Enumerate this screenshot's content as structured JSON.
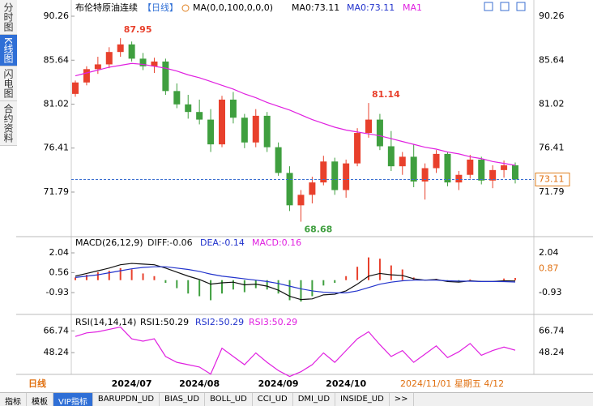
{
  "tabs": [
    "分时图",
    "K线图",
    "闪电图",
    "合约资料"
  ],
  "period_label": "日线",
  "cursor_label": "2024/11/01 星期五 4/12",
  "toolbar": [
    "指标",
    "模板",
    "VIP指标",
    "BARUPDN_UD",
    "BIAS_UD",
    "BOLL_UD",
    "CCI_UD",
    "DMI_UD",
    "INSIDE_UD",
    ">>"
  ],
  "chart_data": [
    {
      "type": "candlestick",
      "title": "布伦特原油连续",
      "period": "【日线】",
      "indicator": "MA(0,0,100,0,0,0)",
      "header_labels": [
        "MA0:73.11",
        "MA0:73.11"
      ],
      "categories": [
        null,
        null,
        null,
        null,
        null,
        "2024/07",
        null,
        null,
        null,
        null,
        null,
        "2024/08",
        null,
        null,
        null,
        null,
        null,
        null,
        "2024/09",
        null,
        null,
        null,
        null,
        null,
        "2024/10",
        null,
        null,
        null,
        null,
        null,
        null,
        null,
        null,
        null,
        null,
        null,
        null,
        null,
        null,
        null
      ],
      "candles": [
        [
          82.1,
          83.5,
          81.8,
          83.3
        ],
        [
          83.3,
          85.0,
          83.0,
          84.7
        ],
        [
          84.7,
          86.0,
          84.2,
          85.2
        ],
        [
          85.2,
          87.0,
          84.8,
          86.5
        ],
        [
          86.5,
          87.95,
          86.0,
          87.3
        ],
        [
          87.3,
          87.6,
          85.5,
          85.8
        ],
        [
          85.8,
          86.4,
          84.6,
          85.0
        ],
        [
          85.0,
          85.9,
          84.3,
          85.5
        ],
        [
          85.5,
          85.8,
          82.0,
          82.4
        ],
        [
          82.4,
          83.2,
          80.6,
          81.0
        ],
        [
          81.0,
          82.0,
          79.5,
          80.2
        ],
        [
          80.2,
          81.5,
          78.9,
          79.4
        ],
        [
          79.4,
          80.5,
          76.0,
          76.8
        ],
        [
          76.8,
          81.9,
          76.5,
          81.5
        ],
        [
          81.5,
          82.3,
          79.0,
          79.6
        ],
        [
          79.6,
          80.0,
          76.4,
          77.0
        ],
        [
          77.0,
          80.5,
          76.5,
          79.8
        ],
        [
          79.8,
          80.2,
          76.0,
          76.5
        ],
        [
          76.5,
          77.0,
          73.5,
          73.8
        ],
        [
          73.8,
          74.5,
          69.8,
          70.4
        ],
        [
          70.4,
          72.0,
          68.68,
          71.5
        ],
        [
          71.5,
          73.4,
          70.6,
          72.8
        ],
        [
          72.8,
          75.6,
          72.5,
          75.0
        ],
        [
          75.0,
          75.4,
          71.5,
          72.0
        ],
        [
          72.0,
          75.2,
          71.2,
          74.8
        ],
        [
          74.8,
          78.5,
          74.5,
          78.0
        ],
        [
          78.0,
          81.14,
          77.5,
          79.4
        ],
        [
          79.4,
          80.0,
          76.2,
          76.6
        ],
        [
          76.6,
          78.2,
          74.0,
          74.5
        ],
        [
          74.5,
          76.0,
          73.6,
          75.5
        ],
        [
          75.5,
          76.8,
          72.3,
          72.9
        ],
        [
          72.9,
          74.8,
          71.0,
          74.3
        ],
        [
          74.3,
          76.2,
          73.8,
          75.8
        ],
        [
          75.8,
          76.0,
          72.4,
          72.8
        ],
        [
          72.8,
          74.0,
          72.0,
          73.6
        ],
        [
          73.6,
          75.7,
          73.2,
          75.2
        ],
        [
          75.2,
          75.5,
          72.6,
          73.0
        ],
        [
          73.0,
          74.6,
          72.2,
          74.1
        ],
        [
          74.1,
          75.1,
          73.3,
          74.6
        ],
        [
          74.6,
          74.9,
          72.7,
          73.11
        ]
      ],
      "up_color": "#e8402c",
      "down_color": "#3f9f3f",
      "series": [
        {
          "name": "MA1",
          "color": "#e020e0",
          "values": [
            84.0,
            84.3,
            84.6,
            84.9,
            85.1,
            85.3,
            85.2,
            85.0,
            84.8,
            84.5,
            84.1,
            83.8,
            83.4,
            83.0,
            82.6,
            82.1,
            81.7,
            81.2,
            80.8,
            80.4,
            79.9,
            79.4,
            79.0,
            78.6,
            78.3,
            78.1,
            77.9,
            77.7,
            77.4,
            77.1,
            76.8,
            76.5,
            76.3,
            76.0,
            75.8,
            75.5,
            75.3,
            75.0,
            74.8,
            74.6
          ]
        }
      ],
      "annotations": [
        {
          "label": "87.95",
          "value": 87.95,
          "index": 4
        },
        {
          "label": "68.68",
          "value": 68.68,
          "index": 20
        },
        {
          "label": "81.14",
          "value": 81.14,
          "index": 26
        }
      ],
      "last_price": 73.11,
      "ylim": [
        67.28,
        90.94
      ],
      "yticks": [
        90.26,
        85.64,
        81.02,
        76.41,
        71.79
      ]
    },
    {
      "type": "macd",
      "title": "MACD(26,12,9)",
      "header_labels": [
        "DIFF:-0.06",
        "DEA:-0.14",
        "MACD:0.16"
      ],
      "series": [
        {
          "name": "DIFF",
          "color": "#111111",
          "values": [
            0.3,
            0.5,
            0.7,
            0.9,
            1.15,
            1.25,
            1.2,
            1.15,
            0.9,
            0.6,
            0.3,
            0.05,
            -0.3,
            -0.2,
            -0.15,
            -0.35,
            -0.3,
            -0.45,
            -0.75,
            -1.2,
            -1.45,
            -1.4,
            -1.1,
            -1.05,
            -0.8,
            -0.3,
            0.3,
            0.5,
            0.4,
            0.35,
            0.1,
            0.0,
            0.05,
            -0.1,
            -0.15,
            -0.05,
            -0.1,
            -0.1,
            -0.05,
            -0.06
          ]
        },
        {
          "name": "DEA",
          "color": "#2233cc",
          "values": [
            0.2,
            0.3,
            0.4,
            0.55,
            0.7,
            0.85,
            0.95,
            1.0,
            1.0,
            0.9,
            0.8,
            0.65,
            0.45,
            0.3,
            0.2,
            0.1,
            0.0,
            -0.1,
            -0.25,
            -0.45,
            -0.65,
            -0.8,
            -0.9,
            -0.95,
            -0.95,
            -0.8,
            -0.55,
            -0.3,
            -0.15,
            -0.05,
            0.0,
            0.0,
            0.0,
            -0.05,
            -0.07,
            -0.08,
            -0.1,
            -0.1,
            -0.11,
            -0.14
          ]
        }
      ],
      "histogram": {
        "name": "MACD",
        "up_color": "#e8402c",
        "down_color": "#3f9f3f",
        "values": [
          0.2,
          0.4,
          0.6,
          0.7,
          0.9,
          0.8,
          0.5,
          0.3,
          -0.2,
          -0.6,
          -1.0,
          -1.2,
          -1.5,
          -1.0,
          -0.7,
          -0.9,
          -0.6,
          -0.7,
          -1.0,
          -1.5,
          -1.6,
          -1.2,
          -0.4,
          -0.2,
          0.3,
          1.0,
          1.7,
          1.6,
          1.1,
          0.8,
          0.2,
          0.0,
          0.1,
          -0.1,
          -0.16,
          0.06,
          0.0,
          0.0,
          0.12,
          0.16
        ]
      },
      "right_marker": 0.87,
      "ylim": [
        -2.38,
        3.01
      ],
      "yticks": [
        2.04,
        0.56,
        -0.93
      ]
    },
    {
      "type": "line",
      "title": "RSI(14,14,14)",
      "header_labels": [
        "RSI1:50.29",
        "RSI2:50.29",
        "RSI3:50.29"
      ],
      "series": [
        {
          "name": "RSI",
          "color": "#e020e0",
          "values": [
            62,
            65,
            66,
            68,
            70,
            60,
            58,
            60,
            45,
            40,
            38,
            36,
            30,
            52,
            45,
            38,
            48,
            40,
            33,
            28,
            32,
            38,
            48,
            40,
            50,
            60,
            66,
            55,
            45,
            50,
            40,
            47,
            54,
            44,
            49,
            56,
            46,
            50,
            53,
            50.29
          ]
        }
      ],
      "ylim": [
        29.75,
        77.97
      ],
      "yticks": [
        66.74,
        48.24
      ]
    }
  ]
}
